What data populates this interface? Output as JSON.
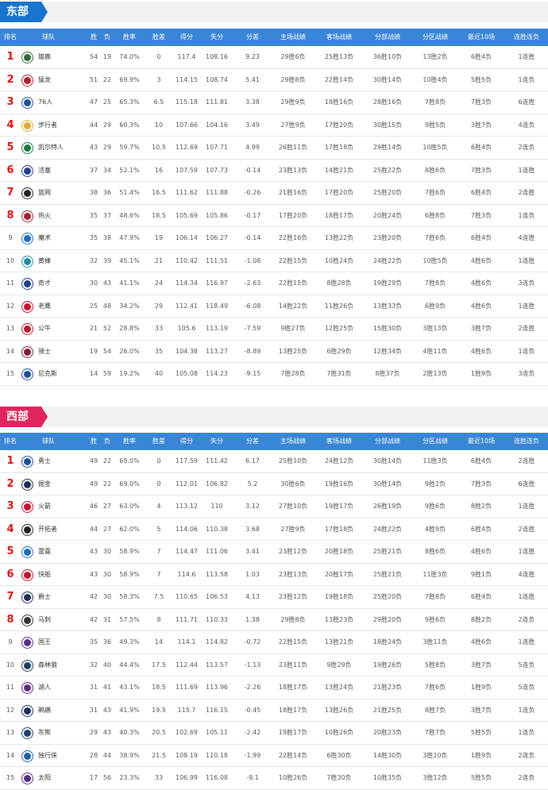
{
  "headers": [
    "排名",
    "球队",
    "胜",
    "负",
    "胜率",
    "胜差",
    "得分",
    "失分",
    "分差",
    "主场战绩",
    "客场战绩",
    "分部战绩",
    "分区战绩",
    "最近10场",
    "连胜连负"
  ],
  "colors": {
    "east_tab": "#1874cc",
    "west_tab": "#e0245e",
    "header_bg": "#3a86d6",
    "top8_rank": "#d91414"
  },
  "east": {
    "title": "东部",
    "rows": [
      {
        "rank": "1",
        "team": "雄鹿",
        "w": "54",
        "l": "19",
        "pct": "74.0%",
        "gb": "0",
        "pf": "117.4",
        "pa": "108.16",
        "diff": "9.23",
        "home": "29胜6负",
        "away": "25胜13负",
        "div": "36胜10负",
        "conf": "13胜2负",
        "last10": "6胜4负",
        "streak": "1连胜",
        "logo": "#2e6b3a"
      },
      {
        "rank": "2",
        "team": "猛龙",
        "w": "51",
        "l": "22",
        "pct": "69.9%",
        "gb": "3",
        "pf": "114.15",
        "pa": "108.74",
        "diff": "5.41",
        "home": "29胜8负",
        "away": "22胜14负",
        "div": "30胜14负",
        "conf": "10胜4负",
        "last10": "5胜5负",
        "streak": "1连负",
        "logo": "#b01e2e"
      },
      {
        "rank": "3",
        "team": "76人",
        "w": "47",
        "l": "25",
        "pct": "65.3%",
        "gb": "6.5",
        "pf": "115.18",
        "pa": "111.81",
        "diff": "3.38",
        "home": "29胜9负",
        "away": "18胜16负",
        "div": "28胜16负",
        "conf": "7胜8负",
        "last10": "7胜3负",
        "streak": "6连胜",
        "logo": "#1d4f9c"
      },
      {
        "rank": "4",
        "team": "步行者",
        "w": "44",
        "l": "29",
        "pct": "60.3%",
        "gb": "10",
        "pf": "107.66",
        "pa": "104.16",
        "diff": "3.49",
        "home": "27胜9负",
        "away": "17胜20负",
        "div": "30胜15负",
        "conf": "9胜5负",
        "last10": "3胜7负",
        "streak": "4连负",
        "logo": "#e0a82e"
      },
      {
        "rank": "5",
        "team": "凯尔特人",
        "w": "43",
        "l": "29",
        "pct": "59.7%",
        "gb": "10.5",
        "pf": "112.69",
        "pa": "107.71",
        "diff": "4.99",
        "home": "26胜11负",
        "away": "17胜18负",
        "div": "29胜14负",
        "conf": "10胜5负",
        "last10": "6胜4负",
        "streak": "2连负",
        "logo": "#1f7a3d"
      },
      {
        "rank": "6",
        "team": "活塞",
        "w": "37",
        "l": "34",
        "pct": "52.1%",
        "gb": "16",
        "pf": "107.59",
        "pa": "107.73",
        "diff": "-0.14",
        "home": "23胜13负",
        "away": "14胜21负",
        "div": "25胜22负",
        "conf": "8胜6负",
        "last10": "7胜3负",
        "streak": "1连胜",
        "logo": "#1d3f8c"
      },
      {
        "rank": "7",
        "team": "篮网",
        "w": "38",
        "l": "36",
        "pct": "51.4%",
        "gb": "16.5",
        "pf": "111.62",
        "pa": "111.88",
        "diff": "-0.26",
        "home": "21胜16负",
        "away": "17胜20负",
        "div": "25胜20负",
        "conf": "7胜6负",
        "last10": "6胜4负",
        "streak": "2连胜",
        "logo": "#222222"
      },
      {
        "rank": "8",
        "team": "热火",
        "w": "35",
        "l": "37",
        "pct": "48.6%",
        "gb": "18.5",
        "pf": "105.69",
        "pa": "105.86",
        "diff": "-0.17",
        "home": "17胜20负",
        "away": "18胜17负",
        "div": "20胜24负",
        "conf": "6胜8负",
        "last10": "7胜3负",
        "streak": "1连负",
        "logo": "#a51e2e"
      },
      {
        "rank": "9",
        "team": "魔术",
        "w": "35",
        "l": "38",
        "pct": "47.9%",
        "gb": "19",
        "pf": "106.14",
        "pa": "106.27",
        "diff": "-0.14",
        "home": "22胜16负",
        "away": "13胜22负",
        "div": "23胜20负",
        "conf": "7胜6负",
        "last10": "6胜4负",
        "streak": "4连胜",
        "logo": "#1e6bbf"
      },
      {
        "rank": "10",
        "team": "黄蜂",
        "w": "32",
        "l": "39",
        "pct": "45.1%",
        "gb": "21",
        "pf": "110.42",
        "pa": "111.51",
        "diff": "-1.08",
        "home": "22胜15负",
        "away": "10胜24负",
        "div": "24胜22负",
        "conf": "10胜5负",
        "last10": "4胜6负",
        "streak": "1连胜",
        "logo": "#1b8fa6"
      },
      {
        "rank": "11",
        "team": "奇才",
        "w": "30",
        "l": "43",
        "pct": "41.1%",
        "gb": "24",
        "pf": "114.34",
        "pa": "116.97",
        "diff": "-2.63",
        "home": "22胜15负",
        "away": "8胜28负",
        "div": "19胜29负",
        "conf": "7胜8负",
        "last10": "4胜6负",
        "streak": "3连负",
        "logo": "#1d3f8c"
      },
      {
        "rank": "12",
        "team": "老鹰",
        "w": "25",
        "l": "48",
        "pct": "34.2%",
        "gb": "29",
        "pf": "112.41",
        "pa": "118.49",
        "diff": "-6.08",
        "home": "14胜22负",
        "away": "11胜26负",
        "div": "13胜33负",
        "conf": "6胜9负",
        "last10": "4胜6负",
        "streak": "1连胜",
        "logo": "#c8102e"
      },
      {
        "rank": "13",
        "team": "公牛",
        "w": "21",
        "l": "52",
        "pct": "28.8%",
        "gb": "33",
        "pf": "105.6",
        "pa": "113.19",
        "diff": "-7.59",
        "home": "9胜27负",
        "away": "12胜25负",
        "div": "15胜30负",
        "conf": "3胜13负",
        "last10": "3胜7负",
        "streak": "2连胜",
        "logo": "#b01e2e"
      },
      {
        "rank": "14",
        "team": "骑士",
        "w": "19",
        "l": "54",
        "pct": "26.0%",
        "gb": "35",
        "pf": "104.38",
        "pa": "113.27",
        "diff": "-8.89",
        "home": "13胜25负",
        "away": "6胜29负",
        "div": "12胜34负",
        "conf": "4胜11负",
        "last10": "4胜6负",
        "streak": "1连负",
        "logo": "#7a1f2e"
      },
      {
        "rank": "15",
        "team": "尼克斯",
        "w": "14",
        "l": "59",
        "pct": "19.2%",
        "gb": "40",
        "pf": "105.08",
        "pa": "114.23",
        "diff": "-9.15",
        "home": "7胜28负",
        "away": "7胜31负",
        "div": "8胜37负",
        "conf": "2胜13负",
        "last10": "1胜9负",
        "streak": "3连负",
        "logo": "#1d4f9c"
      }
    ]
  },
  "west": {
    "title": "西部",
    "rows": [
      {
        "rank": "1",
        "team": "勇士",
        "w": "49",
        "l": "22",
        "pct": "69.0%",
        "gb": "0",
        "pf": "117.59",
        "pa": "111.42",
        "diff": "6.17",
        "home": "25胜10负",
        "away": "24胜12负",
        "div": "30胜14负",
        "conf": "11胜3负",
        "last10": "6胜4负",
        "streak": "2连胜",
        "logo": "#1d4f9c"
      },
      {
        "rank": "2",
        "team": "掘金",
        "w": "49",
        "l": "22",
        "pct": "69.0%",
        "gb": "0",
        "pf": "112.01",
        "pa": "106.82",
        "diff": "5.2",
        "home": "30胜6负",
        "away": "19胜16负",
        "div": "30胜14负",
        "conf": "9胜2负",
        "last10": "7胜3负",
        "streak": "6连胜",
        "logo": "#1e2f5c"
      },
      {
        "rank": "3",
        "team": "火箭",
        "w": "46",
        "l": "27",
        "pct": "63.0%",
        "gb": "4",
        "pf": "113.12",
        "pa": "110",
        "diff": "3.12",
        "home": "27胜10负",
        "away": "19胜17负",
        "div": "26胜19负",
        "conf": "9胜6负",
        "last10": "8胜2负",
        "streak": "1连胜",
        "logo": "#c8102e"
      },
      {
        "rank": "4",
        "team": "开拓者",
        "w": "44",
        "l": "27",
        "pct": "62.0%",
        "gb": "5",
        "pf": "114.06",
        "pa": "110.38",
        "diff": "3.68",
        "home": "27胜9负",
        "away": "17胜18负",
        "div": "24胜22负",
        "conf": "4胜9负",
        "last10": "6胜4负",
        "streak": "2连胜",
        "logo": "#222222"
      },
      {
        "rank": "5",
        "team": "雷霆",
        "w": "43",
        "l": "30",
        "pct": "58.9%",
        "gb": "7",
        "pf": "114.47",
        "pa": "111.06",
        "diff": "3.41",
        "home": "23胜12负",
        "away": "20胜18负",
        "div": "25胜21负",
        "conf": "8胜6负",
        "last10": "4胜6负",
        "streak": "1连胜",
        "logo": "#1e6bbf"
      },
      {
        "rank": "6",
        "team": "快船",
        "w": "43",
        "l": "30",
        "pct": "58.9%",
        "gb": "7",
        "pf": "114.6",
        "pa": "113.58",
        "diff": "1.03",
        "home": "23胜13负",
        "away": "20胜17负",
        "div": "25胜21负",
        "conf": "11胜3负",
        "last10": "9胜1负",
        "streak": "4连胜",
        "logo": "#c8102e"
      },
      {
        "rank": "7",
        "team": "爵士",
        "w": "42",
        "l": "30",
        "pct": "58.3%",
        "gb": "7.5",
        "pf": "110.65",
        "pa": "106.53",
        "diff": "4.13",
        "home": "23胜12负",
        "away": "19胜18负",
        "div": "25胜20负",
        "conf": "7胜8负",
        "last10": "6胜4负",
        "streak": "1连胜",
        "logo": "#1e2f5c"
      },
      {
        "rank": "8",
        "team": "马刺",
        "w": "42",
        "l": "31",
        "pct": "57.5%",
        "gb": "8",
        "pf": "111.71",
        "pa": "110.33",
        "diff": "1.38",
        "home": "29胜8负",
        "away": "13胜23负",
        "div": "29胜20负",
        "conf": "9胜6负",
        "last10": "8胜2负",
        "streak": "2连负",
        "logo": "#333333"
      },
      {
        "rank": "9",
        "team": "国王",
        "w": "35",
        "l": "36",
        "pct": "49.3%",
        "gb": "14",
        "pf": "114.1",
        "pa": "114.82",
        "diff": "-0.72",
        "home": "22胜15负",
        "away": "13胜21负",
        "div": "18胜24负",
        "conf": "3胜11负",
        "last10": "4胜6负",
        "streak": "1连胜",
        "logo": "#5a2d82"
      },
      {
        "rank": "10",
        "team": "森林狼",
        "w": "32",
        "l": "40",
        "pct": "44.4%",
        "gb": "17.5",
        "pf": "112.44",
        "pa": "113.57",
        "diff": "-1.13",
        "home": "23胜11负",
        "away": "9胜29负",
        "div": "19胜26负",
        "conf": "5胜8负",
        "last10": "3胜7负",
        "streak": "5连负",
        "logo": "#1e3f5c"
      },
      {
        "rank": "11",
        "team": "湖人",
        "w": "31",
        "l": "41",
        "pct": "43.1%",
        "gb": "18.5",
        "pf": "111.69",
        "pa": "113.96",
        "diff": "-2.26",
        "home": "18胜17负",
        "away": "13胜24负",
        "div": "21胜23负",
        "conf": "7胜6负",
        "last10": "1胜9负",
        "streak": "5连负",
        "logo": "#5a2d82"
      },
      {
        "rank": "12",
        "team": "鹈鹕",
        "w": "31",
        "l": "43",
        "pct": "41.9%",
        "gb": "19.5",
        "pf": "115.7",
        "pa": "116.15",
        "diff": "-0.45",
        "home": "18胜17负",
        "away": "13胜26负",
        "div": "21胜25负",
        "conf": "8胜7负",
        "last10": "3胜7负",
        "streak": "1连负",
        "logo": "#1e2f5c"
      },
      {
        "rank": "13",
        "team": "灰熊",
        "w": "29",
        "l": "43",
        "pct": "40.3%",
        "gb": "20.5",
        "pf": "102.69",
        "pa": "105.11",
        "diff": "-2.42",
        "home": "19胜17负",
        "away": "10胜26负",
        "div": "20胜23负",
        "conf": "7胜7负",
        "last10": "5胜5负",
        "streak": "1连负",
        "logo": "#1e3f6c"
      },
      {
        "rank": "14",
        "team": "独行侠",
        "w": "28",
        "l": "44",
        "pct": "38.9%",
        "gb": "21.5",
        "pf": "108.19",
        "pa": "110.18",
        "diff": "-1.99",
        "home": "22胜14负",
        "away": "6胜30负",
        "div": "14胜30负",
        "conf": "3胜10负",
        "last10": "1胜9负",
        "streak": "2连负",
        "logo": "#1e5fa8"
      },
      {
        "rank": "15",
        "team": "太阳",
        "w": "17",
        "l": "56",
        "pct": "23.3%",
        "gb": "33",
        "pf": "106.99",
        "pa": "116.08",
        "diff": "-9.1",
        "home": "10胜26负",
        "away": "7胜30负",
        "div": "10胜35负",
        "conf": "3胜12负",
        "last10": "5胜5负",
        "streak": "2连负",
        "logo": "#5a2d82"
      }
    ]
  }
}
